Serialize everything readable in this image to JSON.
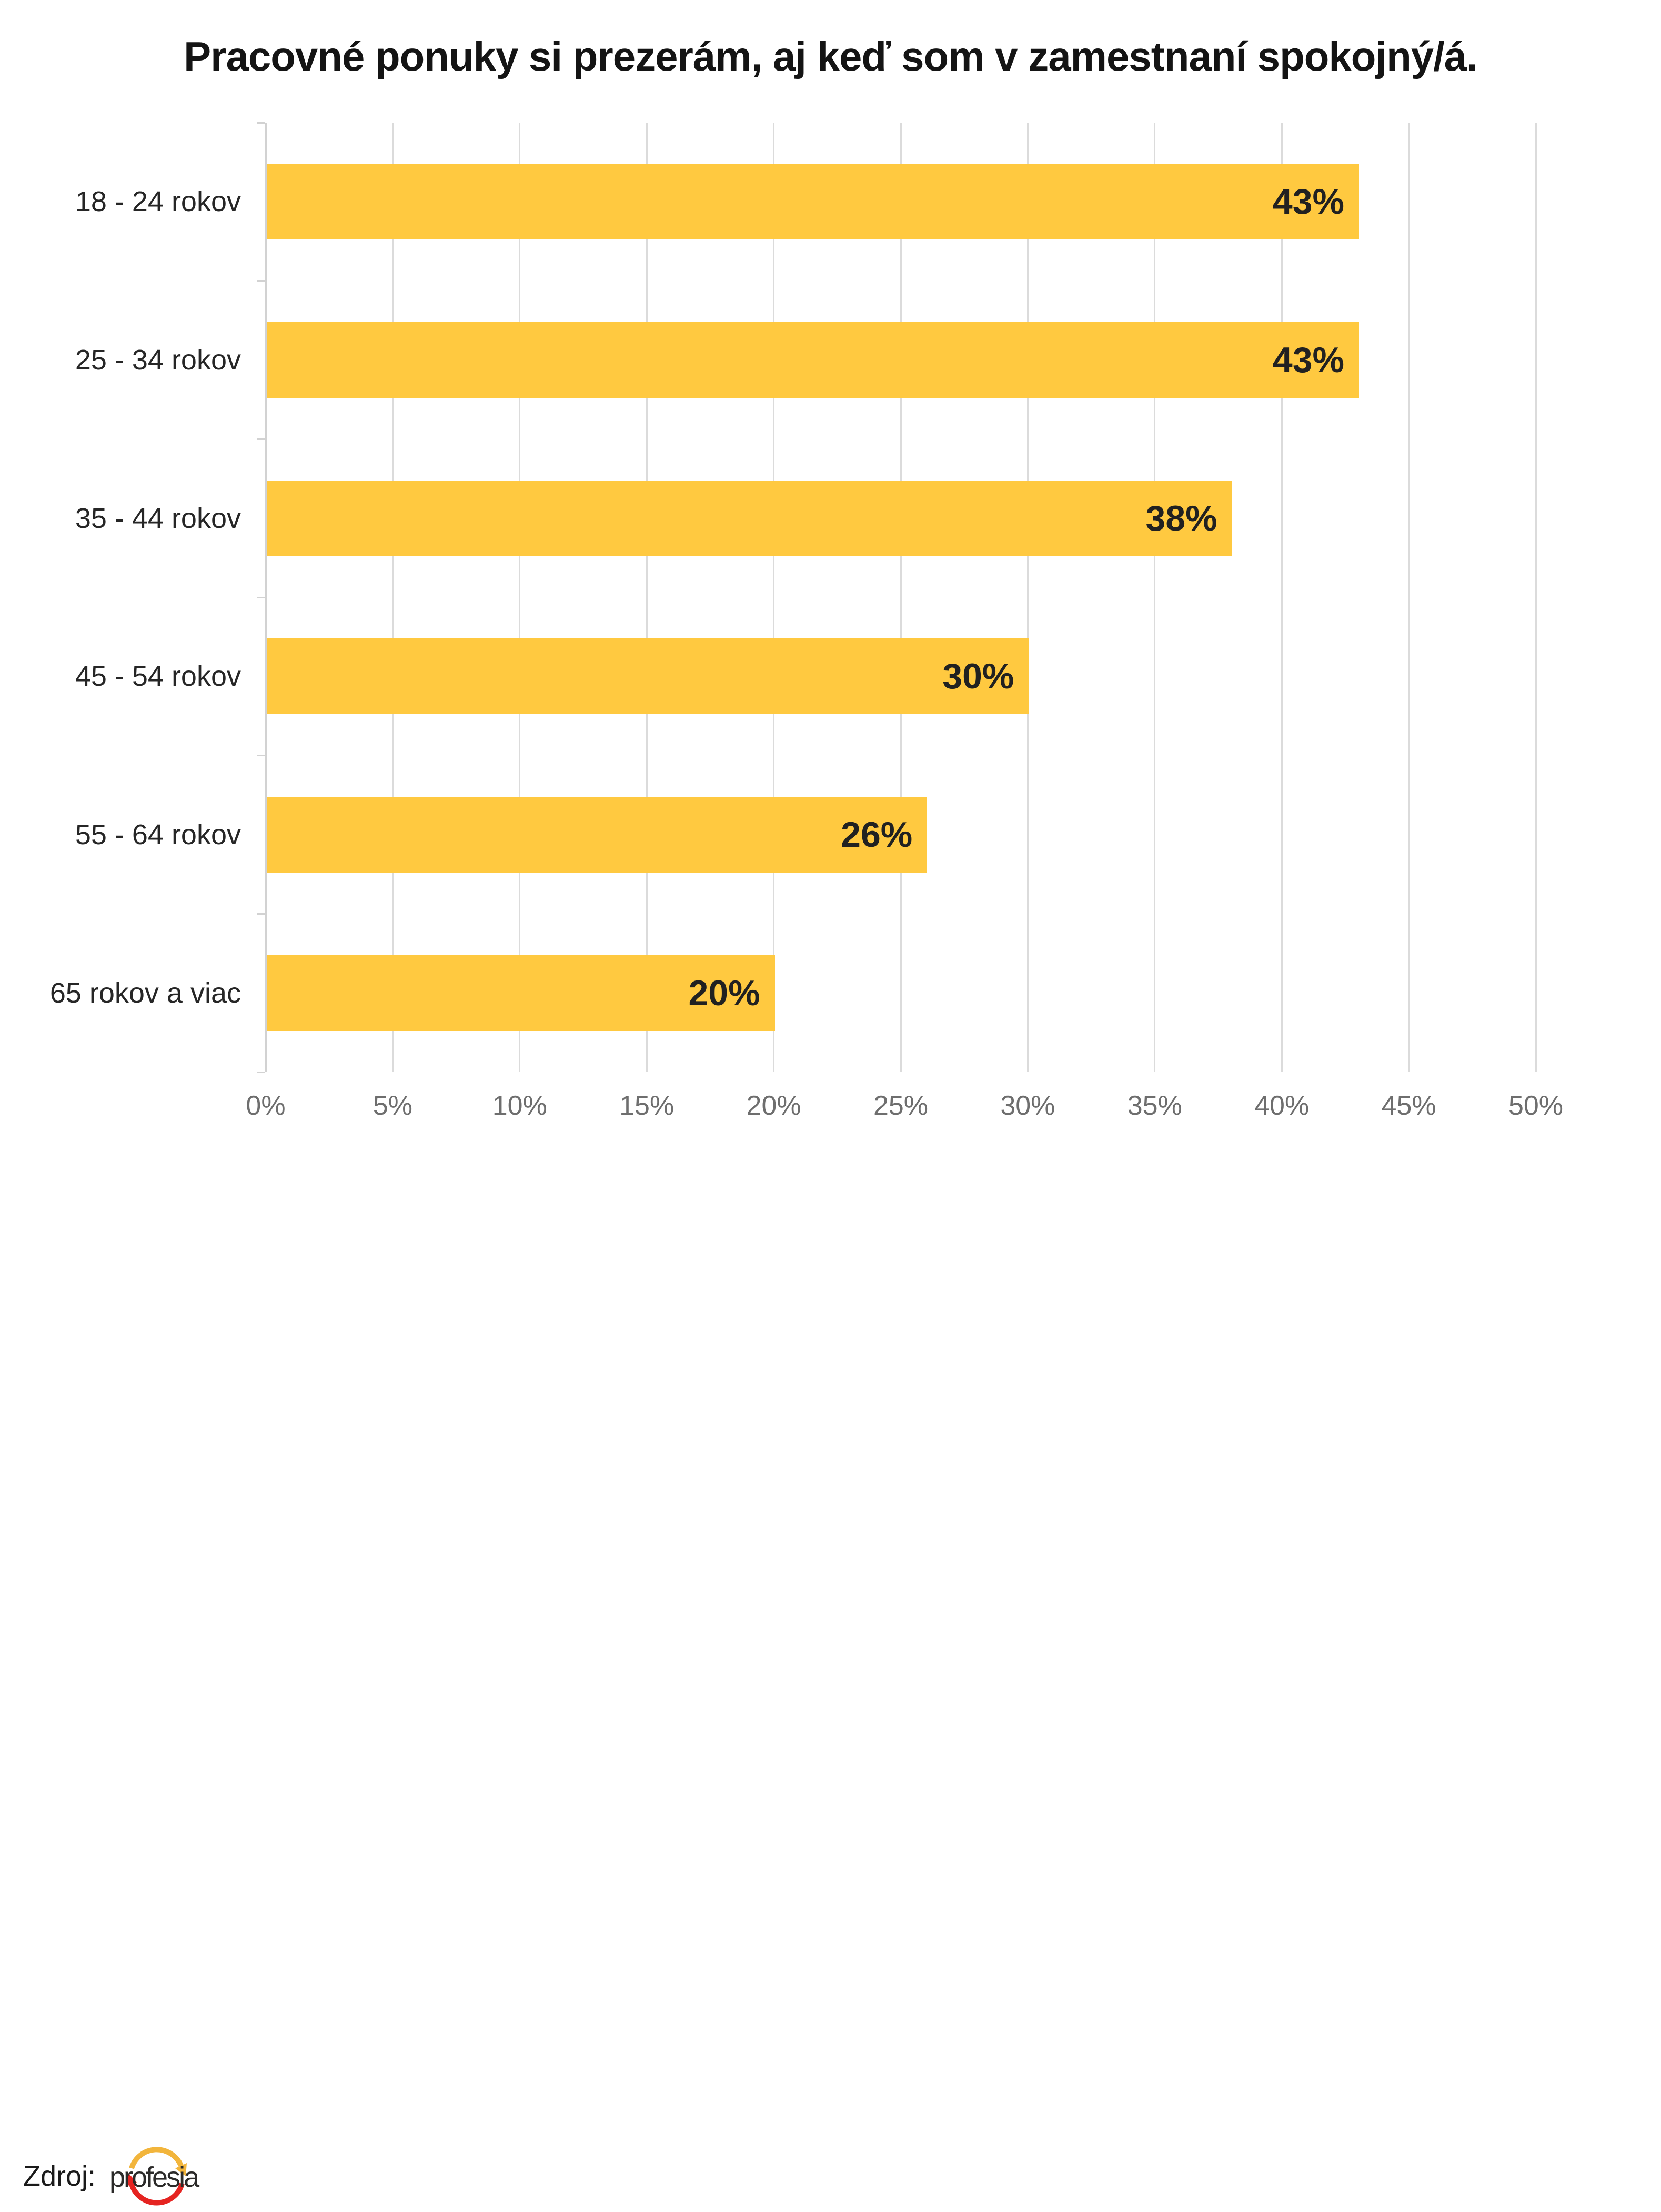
{
  "chart_data": {
    "type": "bar",
    "orientation": "horizontal",
    "title": "Pracovné ponuky si prezerám, aj keď som v zamestnaní spokojný/á.",
    "categories": [
      "18 - 24 rokov",
      "25 - 34 rokov",
      "35 - 44 rokov",
      "45 - 54 rokov",
      "55 - 64 rokov",
      "65 rokov a viac"
    ],
    "values": [
      43,
      43,
      38,
      30,
      26,
      20
    ],
    "value_labels": [
      "43%",
      "43%",
      "38%",
      "30%",
      "26%",
      "20%"
    ],
    "xlabel": "",
    "ylabel": "",
    "xlim": [
      0,
      50
    ],
    "x_tick_step": 5,
    "x_tick_labels": [
      "0%",
      "5%",
      "10%",
      "15%",
      "20%",
      "25%",
      "30%",
      "35%",
      "40%",
      "45%",
      "50%"
    ],
    "grid": true,
    "legend": "none",
    "bar_color": "#FFC940",
    "value_label_color": "#212121",
    "category_label_color": "#262626",
    "axis_text_color": "#6E6E6E",
    "gridline_color": "#DBDBDB",
    "axis_line_color": "#D2D2D2",
    "title_color": "#141414"
  },
  "source": {
    "prefix": "Zdroj:",
    "logo_text": "profesia",
    "logo_yellow": "#F2B53C",
    "logo_red": "#E52421",
    "logo_text_color": "#2B2A29"
  }
}
